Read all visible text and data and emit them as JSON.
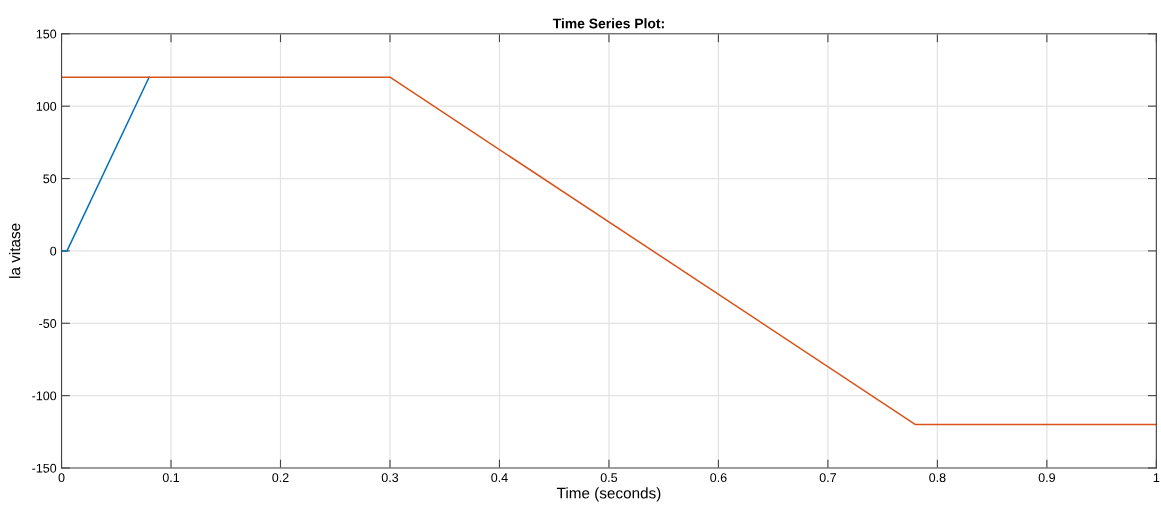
{
  "chart_data": {
    "type": "line",
    "title": "Time Series Plot:",
    "xlabel": "Time (seconds)",
    "ylabel": "la vitase",
    "series": [
      {
        "color": "#0072bd",
        "x": [
          0,
          0.005,
          0.08
        ],
        "values": [
          0,
          0,
          120
        ]
      },
      {
        "color": "#d95319",
        "x": [
          0,
          0.3,
          0.78,
          1
        ],
        "values": [
          120,
          120,
          -120,
          -120
        ]
      }
    ],
    "xlim": [
      0,
      1
    ],
    "xticks": [
      0,
      0.1,
      0.2,
      0.3,
      0.4,
      0.5,
      0.6,
      0.7,
      0.8,
      0.9,
      1
    ],
    "ylim": [
      -150,
      150
    ],
    "yticks": [
      -150,
      -100,
      -50,
      0,
      50,
      100,
      150
    ],
    "grid": true,
    "marker": "none",
    "line_style": "solid"
  }
}
